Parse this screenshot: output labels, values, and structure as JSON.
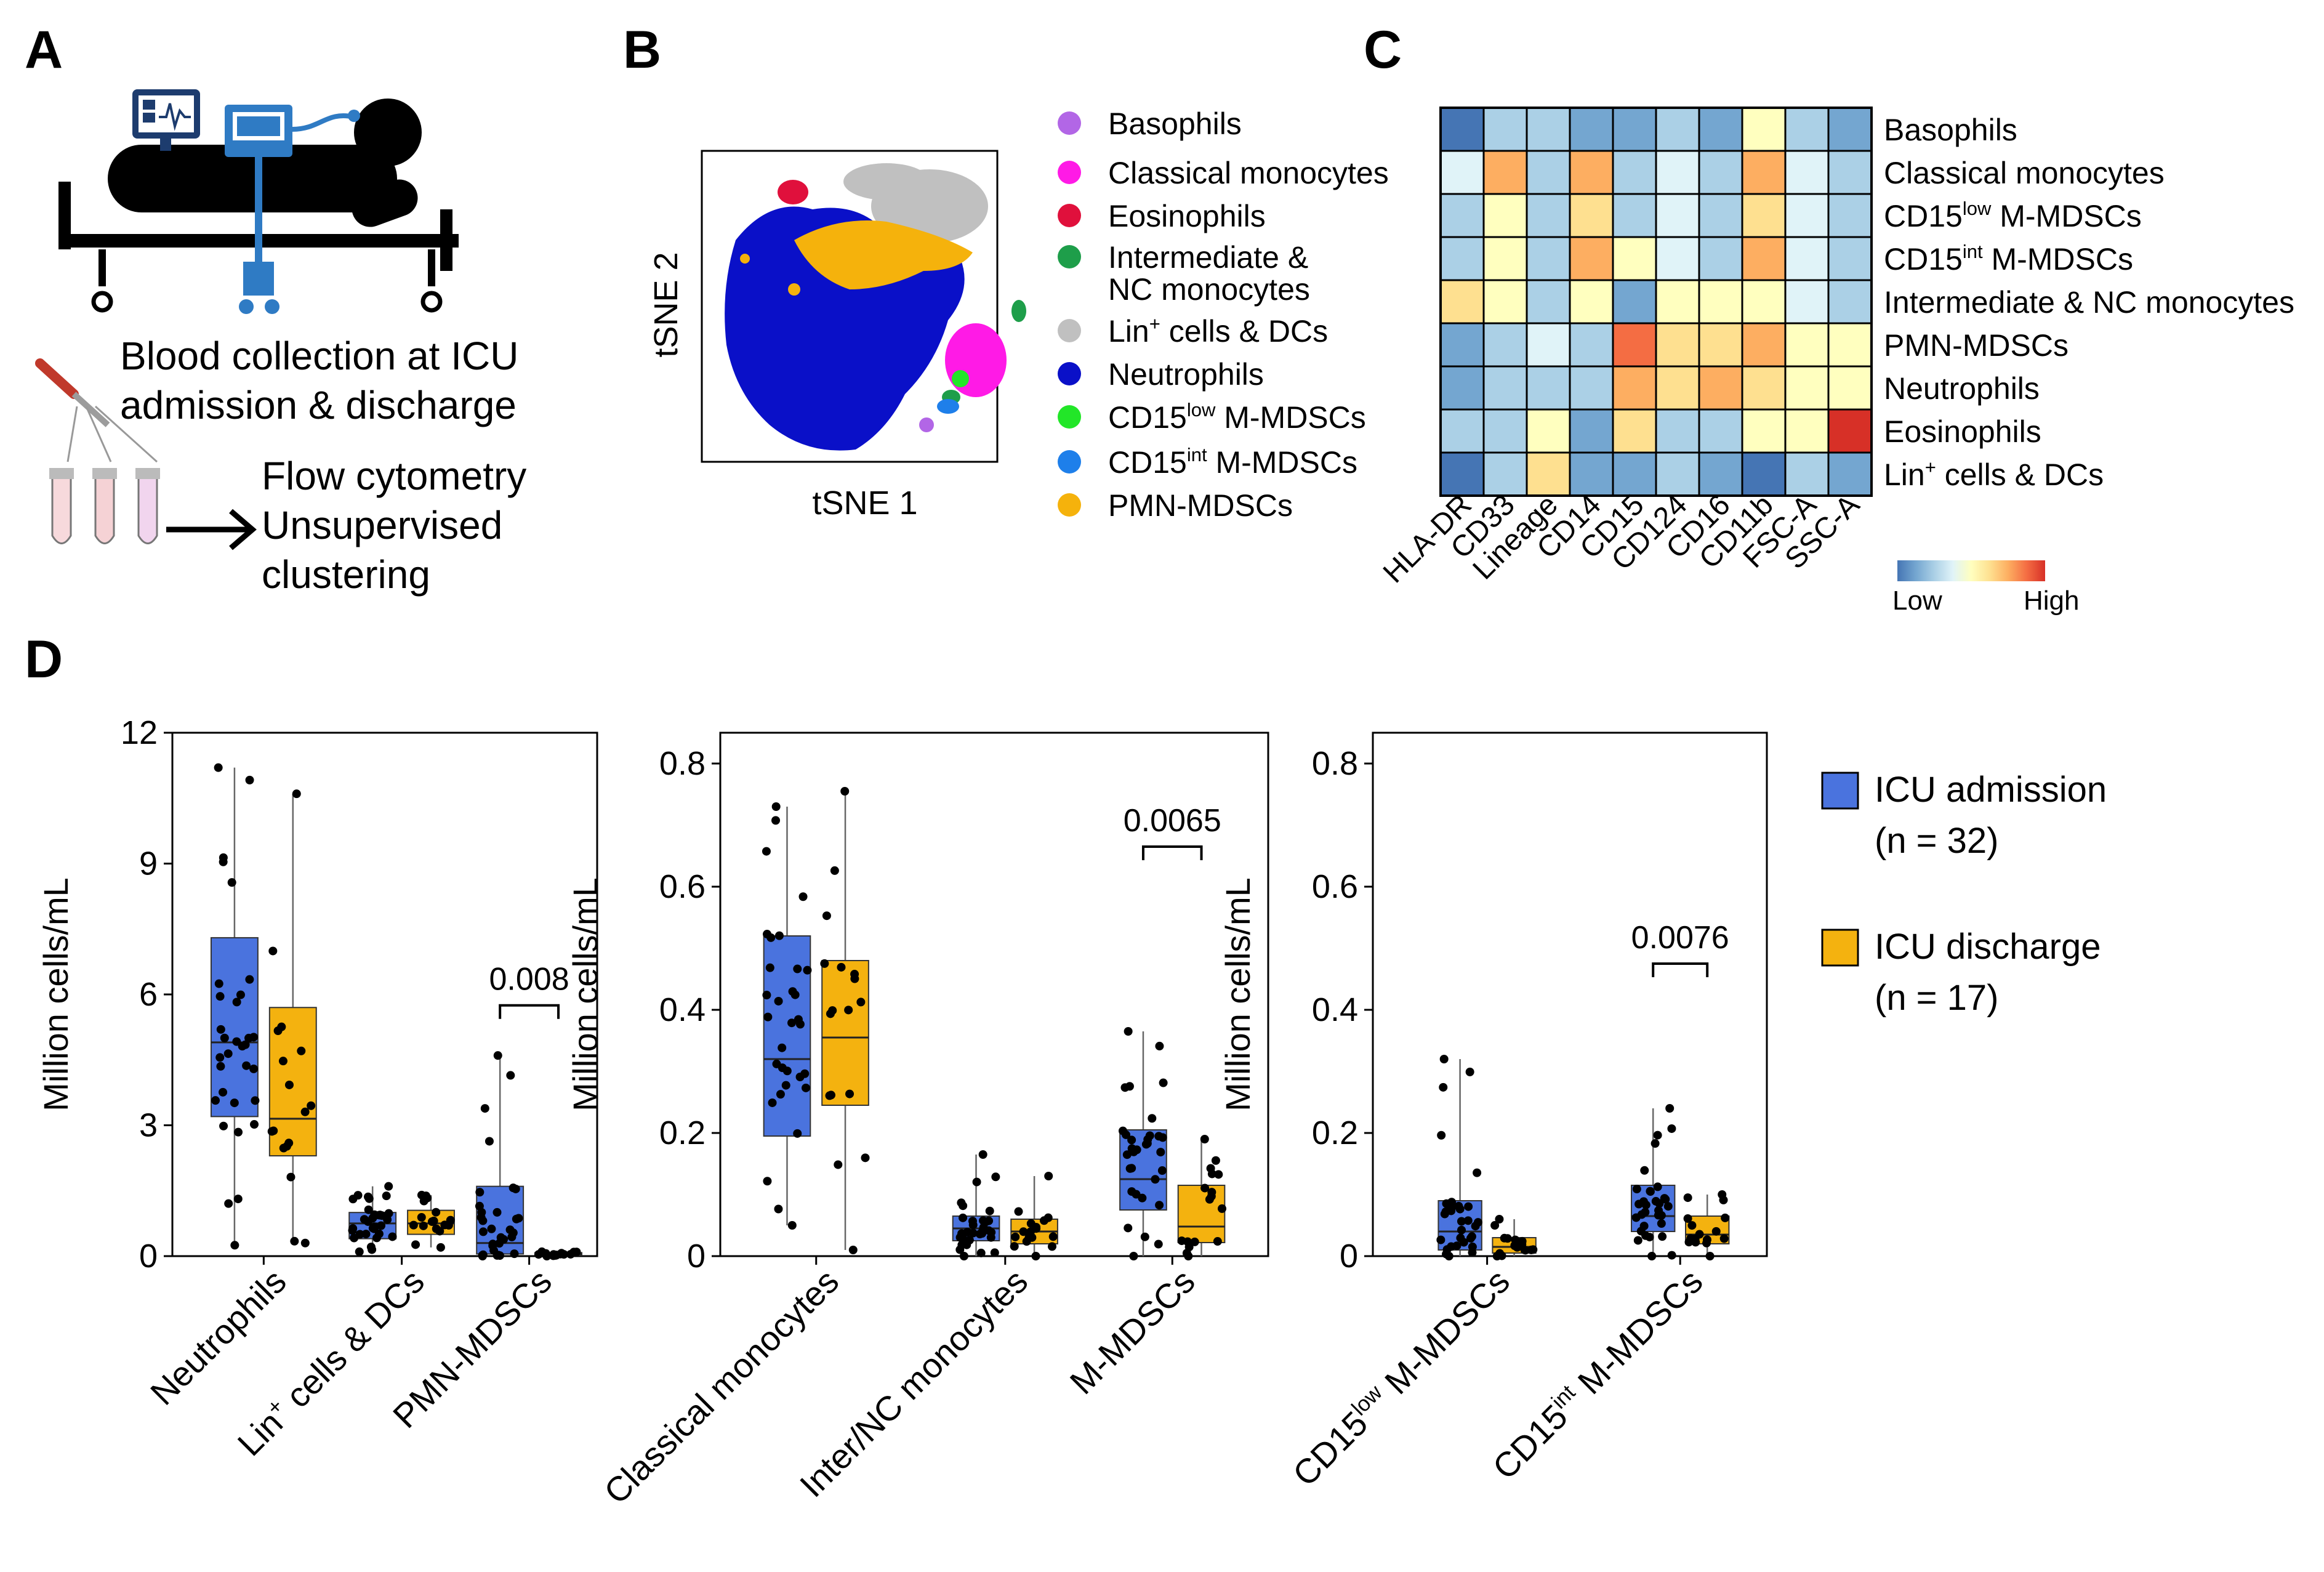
{
  "panel_letters": [
    "A",
    "B",
    "C",
    "D"
  ],
  "panel_a": {
    "caption_line1": "Blood collection at ICU",
    "caption_line2": "admission & discharge",
    "flow_line1": "Flow cytometry",
    "flow_line2": "Unsupervised",
    "flow_line3": "clustering",
    "icons": [
      "icu-bed-icon",
      "patient-monitor-icon",
      "blood-sample-tubes-icon",
      "arrow-icon"
    ]
  },
  "panel_b": {
    "xlabel": "tSNE 1",
    "ylabel": "tSNE 2",
    "legend": [
      {
        "name": "Basophils",
        "color": "#B266E6"
      },
      {
        "name": "Classical monocytes",
        "color": "#FF1AE6"
      },
      {
        "name": "Eosinophils",
        "color": "#E0103C"
      },
      {
        "name": "Intermediate &",
        "name2": "NC monocytes",
        "color": "#1E9E4A"
      },
      {
        "name": "Lin",
        "sup": "+",
        "name2": " cells & DCs",
        "color": "#C0C0C0"
      },
      {
        "name": "Neutrophils",
        "color": "#0A10C8"
      },
      {
        "name": "CD15",
        "sup": "low",
        "name2": " M-MDSCs",
        "color": "#22E628"
      },
      {
        "name": "CD15",
        "sup": "int",
        "name2": " M-MDSCs",
        "color": "#1E7FEA"
      },
      {
        "name": "PMN-MDSCs",
        "color": "#F5B20C"
      }
    ]
  },
  "panel_c": {
    "columns": [
      "HLA-DR",
      "CD33",
      "Lineage",
      "CD14",
      "CD15",
      "CD124",
      "CD16",
      "CD11b",
      "FSC-A",
      "SSC-A"
    ],
    "rows": [
      {
        "name": "Basophils"
      },
      {
        "name": "Classical monocytes"
      },
      {
        "name": "CD15",
        "sup": "low",
        "name2": " M-MDSCs"
      },
      {
        "name": "CD15",
        "sup": "int",
        "name2": " M-MDSCs"
      },
      {
        "name": "Intermediate & NC monocytes"
      },
      {
        "name": "PMN-MDSCs"
      },
      {
        "name": "Neutrophils"
      },
      {
        "name": "Eosinophils"
      },
      {
        "name": "Lin",
        "sup": "+",
        "name2": " cells & DCs"
      }
    ],
    "scale_low": "Low",
    "scale_high": "High",
    "colors": [
      "#4575B4",
      "#74A6D0",
      "#ABD0E6",
      "#E0F3F8",
      "#FFFFBF",
      "#FEE090",
      "#FDAE61",
      "#F46D43",
      "#D73027"
    ]
  },
  "chart_data": {
    "type": "heatmap+box",
    "heatmap": {
      "columns": [
        "HLA-DR",
        "CD33",
        "Lineage",
        "CD14",
        "CD15",
        "CD124",
        "CD16",
        "CD11b",
        "FSC-A",
        "SSC-A"
      ],
      "rows": [
        "Basophils",
        "Classical monocytes",
        "CD15low M-MDSCs",
        "CD15int M-MDSCs",
        "Intermediate & NC monocytes",
        "PMN-MDSCs",
        "Neutrophils",
        "Eosinophils",
        "Lin+ cells & DCs"
      ],
      "values": [
        [
          0.0,
          0.25,
          0.2,
          0.1,
          0.1,
          0.2,
          0.15,
          0.5,
          0.3,
          0.15
        ],
        [
          0.35,
          0.7,
          0.3,
          0.8,
          0.2,
          0.4,
          0.2,
          0.75,
          0.4,
          0.25
        ],
        [
          0.2,
          0.55,
          0.25,
          0.6,
          0.2,
          0.35,
          0.2,
          0.6,
          0.35,
          0.2
        ],
        [
          0.2,
          0.55,
          0.25,
          0.7,
          0.45,
          0.4,
          0.25,
          0.7,
          0.35,
          0.2
        ],
        [
          0.6,
          0.45,
          0.25,
          0.55,
          0.1,
          0.45,
          0.55,
          0.55,
          0.4,
          0.25
        ],
        [
          0.15,
          0.3,
          0.4,
          0.2,
          0.9,
          0.6,
          0.6,
          0.7,
          0.55,
          0.45
        ],
        [
          0.15,
          0.3,
          0.3,
          0.2,
          0.7,
          0.65,
          0.75,
          0.65,
          0.55,
          0.45
        ],
        [
          0.3,
          0.25,
          0.5,
          0.15,
          0.6,
          0.3,
          0.3,
          0.55,
          0.55,
          0.95
        ],
        [
          0.05,
          0.25,
          0.65,
          0.15,
          0.1,
          0.2,
          0.15,
          0.0,
          0.25,
          0.15
        ]
      ]
    },
    "boxplots": {
      "legend": [
        {
          "label": "ICU admission",
          "n": "(n = 32)",
          "color": "#4A73DE"
        },
        {
          "label": "ICU discharge",
          "n": "(n = 17)",
          "color": "#F4B20F"
        }
      ],
      "panels": [
        {
          "ylabel": "Million cells/mL",
          "ylim": [
            0,
            12
          ],
          "yticks": [
            "0",
            "3",
            "6",
            "9",
            "12"
          ],
          "ytick_values": [
            0,
            3,
            6,
            9,
            12
          ],
          "categories": [
            {
              "label": "Neutrophils",
              "admission": {
                "whisker_low": 0.25,
                "q1": 3.2,
                "median": 4.9,
                "q3": 7.3,
                "whisker_high": 11.2
              },
              "discharge": {
                "whisker_low": 0.3,
                "q1": 2.3,
                "median": 3.15,
                "q3": 5.7,
                "whisker_high": 10.6
              }
            },
            {
              "label": "Lin",
              "sup": "+",
              "label2": " cells & DCs",
              "admission": {
                "whisker_low": 0.1,
                "q1": 0.4,
                "median": 0.75,
                "q3": 1.0,
                "whisker_high": 1.6
              },
              "discharge": {
                "whisker_low": 0.2,
                "q1": 0.5,
                "median": 0.75,
                "q3": 1.05,
                "whisker_high": 1.4
              }
            },
            {
              "label": "PMN-MDSCs",
              "admission": {
                "whisker_low": 0.0,
                "q1": 0.05,
                "median": 0.3,
                "q3": 1.6,
                "whisker_high": 4.6
              },
              "discharge": {
                "whisker_low": 0.0,
                "q1": 0.02,
                "median": 0.05,
                "q3": 0.08,
                "whisker_high": 0.1
              }
            }
          ],
          "pvalue": {
            "text": "0.008",
            "category": 2,
            "y": 5.75
          }
        },
        {
          "ylabel": "Million cells/mL",
          "ylim": [
            0,
            0.85
          ],
          "yticks": [
            "0",
            "0.2",
            "0.4",
            "0.6",
            "0.8"
          ],
          "ytick_values": [
            0,
            0.2,
            0.4,
            0.6,
            0.8
          ],
          "categories": [
            {
              "label": "Classical monocytes",
              "admission": {
                "whisker_low": 0.05,
                "q1": 0.195,
                "median": 0.32,
                "q3": 0.52,
                "whisker_high": 0.73
              },
              "discharge": {
                "whisker_low": 0.01,
                "q1": 0.245,
                "median": 0.355,
                "q3": 0.48,
                "whisker_high": 0.755
              }
            },
            {
              "label": "Inter/NC monocytes",
              "admission": {
                "whisker_low": 0.0,
                "q1": 0.025,
                "median": 0.045,
                "q3": 0.065,
                "whisker_high": 0.165
              },
              "discharge": {
                "whisker_low": 0.0,
                "q1": 0.02,
                "median": 0.04,
                "q3": 0.06,
                "whisker_high": 0.13
              }
            },
            {
              "label": "M-MDSCs",
              "admission": {
                "whisker_low": 0.0,
                "q1": 0.075,
                "median": 0.125,
                "q3": 0.205,
                "whisker_high": 0.365
              },
              "discharge": {
                "whisker_low": 0.0,
                "q1": 0.022,
                "median": 0.048,
                "q3": 0.115,
                "whisker_high": 0.19
              }
            }
          ],
          "pvalue": {
            "text": "0.0065",
            "category": 2,
            "y": 0.665
          }
        },
        {
          "ylabel": "Million cells/mL",
          "ylim": [
            0,
            0.85
          ],
          "yticks": [
            "0",
            "0.2",
            "0.4",
            "0.6",
            "0.8"
          ],
          "ytick_values": [
            0,
            0.2,
            0.4,
            0.6,
            0.8
          ],
          "categories": [
            {
              "label": "CD15",
              "sup": "low",
              "label2": " M-MDSCs",
              "admission": {
                "whisker_low": 0.0,
                "q1": 0.01,
                "median": 0.04,
                "q3": 0.09,
                "whisker_high": 0.32
              },
              "discharge": {
                "whisker_low": 0.0,
                "q1": 0.005,
                "median": 0.015,
                "q3": 0.03,
                "whisker_high": 0.06
              }
            },
            {
              "label": "CD15",
              "sup": "int",
              "label2": " M-MDSCs",
              "admission": {
                "whisker_low": 0.0,
                "q1": 0.04,
                "median": 0.065,
                "q3": 0.115,
                "whisker_high": 0.24
              },
              "discharge": {
                "whisker_low": 0.0,
                "q1": 0.02,
                "median": 0.035,
                "q3": 0.065,
                "whisker_high": 0.1
              }
            }
          ],
          "pvalue": {
            "text": "0.0076",
            "category": 1,
            "y": 0.475
          }
        }
      ]
    }
  }
}
